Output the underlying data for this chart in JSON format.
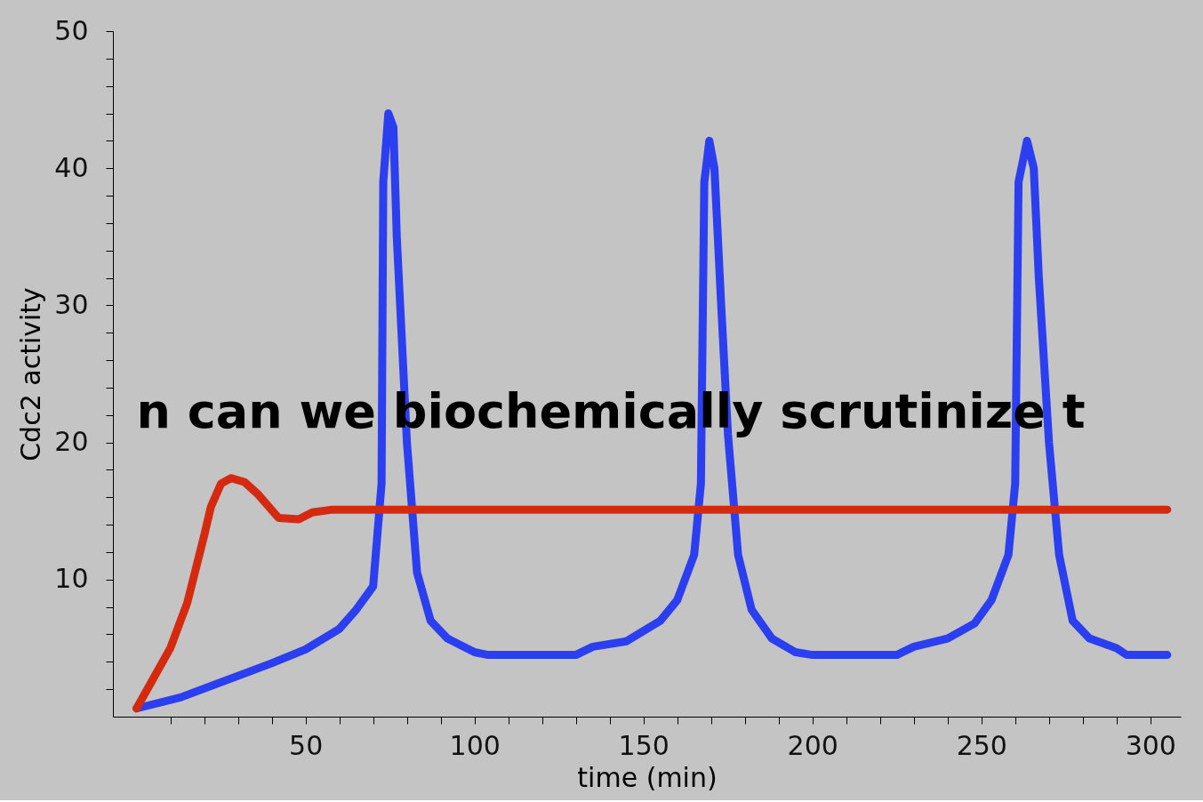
{
  "chart_data": {
    "type": "line",
    "xlabel": "time (min)",
    "ylabel": "Cdc2 activity",
    "xlim": [
      -7,
      309
    ],
    "ylim": [
      0,
      50
    ],
    "xticks": [
      {
        "value": 10,
        "label": null
      },
      {
        "value": 20,
        "label": null
      },
      {
        "value": 30,
        "label": null
      },
      {
        "value": 40,
        "label": null
      },
      50,
      {
        "value": 60,
        "label": null
      },
      {
        "value": 70,
        "label": null
      },
      {
        "value": 80,
        "label": null
      },
      {
        "value": 90,
        "label": null
      },
      100,
      {
        "value": 110,
        "label": null
      },
      {
        "value": 120,
        "label": null
      },
      {
        "value": 130,
        "label": null
      },
      {
        "value": 140,
        "label": null
      },
      150,
      {
        "value": 160,
        "label": null
      },
      {
        "value": 170,
        "label": null
      },
      {
        "value": 180,
        "label": null
      },
      {
        "value": 190,
        "label": null
      },
      200,
      {
        "value": 210,
        "label": null
      },
      {
        "value": 220,
        "label": null
      },
      {
        "value": 230,
        "label": null
      },
      {
        "value": 240,
        "label": null
      },
      250,
      {
        "value": 260,
        "label": null
      },
      {
        "value": 270,
        "label": null
      },
      {
        "value": 280,
        "label": null
      },
      {
        "value": 290,
        "label": null
      },
      300
    ],
    "yticks": [
      {
        "value": 2,
        "label": null
      },
      {
        "value": 4,
        "label": null
      },
      {
        "value": 6,
        "label": null
      },
      {
        "value": 8,
        "label": null
      },
      10,
      {
        "value": 12,
        "label": null
      },
      {
        "value": 14,
        "label": null
      },
      {
        "value": 16,
        "label": null
      },
      {
        "value": 18,
        "label": null
      },
      20,
      {
        "value": 22,
        "label": null
      },
      {
        "value": 24,
        "label": null
      },
      {
        "value": 26,
        "label": null
      },
      {
        "value": 28,
        "label": null
      },
      30,
      {
        "value": 32,
        "label": null
      },
      {
        "value": 34,
        "label": null
      },
      {
        "value": 36,
        "label": null
      },
      {
        "value": 38,
        "label": null
      },
      40,
      {
        "value": 42,
        "label": null
      },
      {
        "value": 44,
        "label": null
      },
      {
        "value": 46,
        "label": null
      },
      {
        "value": 48,
        "label": null
      },
      50
    ],
    "grid": false,
    "marker": "none",
    "line_style": "solid",
    "annotations": [
      "n can we biochemically scrutinize t"
    ],
    "series": [
      {
        "color": "#2b3ff0",
        "x": [
          0,
          13,
          40,
          50,
          60,
          65,
          70,
          71,
          72.5,
          73,
          74.5,
          76,
          77,
          80,
          83,
          87,
          92,
          100,
          104,
          130,
          135,
          145,
          155,
          160,
          165,
          167,
          168,
          169.5,
          171,
          173,
          175,
          178,
          182,
          188,
          195,
          200,
          225,
          230,
          240,
          248,
          253,
          258,
          260,
          261,
          263.5,
          265.5,
          267,
          270,
          273,
          277,
          282,
          290,
          293,
          305
        ],
        "values": [
          0.6,
          1.4,
          3.9,
          4.9,
          6.4,
          7.8,
          9.5,
          12.5,
          17,
          39,
          44,
          43,
          35,
          20,
          10.5,
          7,
          5.7,
          4.7,
          4.5,
          4.5,
          5.1,
          5.5,
          7,
          8.5,
          11.8,
          17,
          39,
          42,
          40,
          30,
          20.6,
          11.8,
          7.8,
          5.7,
          4.7,
          4.5,
          4.5,
          5.1,
          5.7,
          6.8,
          8.5,
          11.8,
          17,
          39,
          42,
          40,
          32,
          20,
          11.8,
          7,
          5.7,
          5,
          4.5,
          4.5
        ]
      },
      {
        "color": "#d42a10",
        "x": [
          0,
          10,
          15,
          20,
          22,
          25,
          28,
          32,
          36,
          42,
          48,
          52,
          58,
          305
        ],
        "values": [
          0.6,
          5,
          8.3,
          13.2,
          15.3,
          17,
          17.4,
          17.1,
          16.2,
          14.5,
          14.4,
          14.9,
          15.1,
          15.1
        ]
      }
    ]
  }
}
